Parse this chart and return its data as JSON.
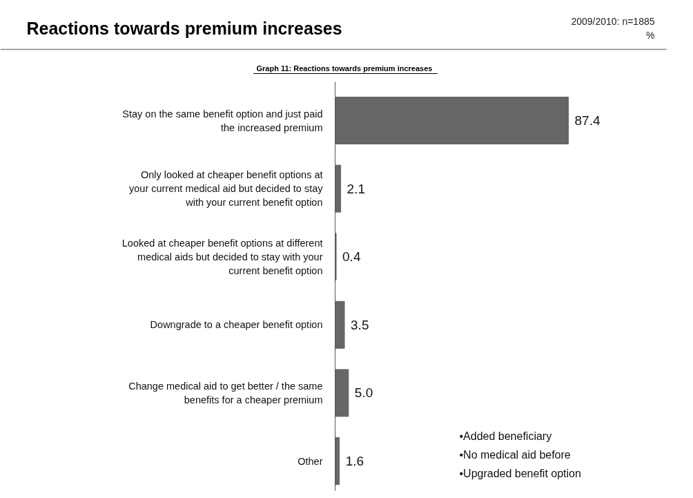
{
  "chart_data": {
    "type": "bar",
    "orientation": "horizontal",
    "title": "Reactions towards premium increases",
    "subtitle": "Graph 11:  Reactions towards premium increases",
    "categories": [
      "Stay on the same benefit option and just paid\nthe increased premium",
      "Only looked at cheaper benefit options at\nyour current medical aid but decided to stay\nwith your current benefit option",
      "Looked at cheaper benefit options at different\nmedical aids but decided to stay with your\ncurrent benefit option",
      "Downgrade to a cheaper benefit option",
      "Change medical aid to get better / the same\nbenefits for a cheaper premium",
      "Other"
    ],
    "values": [
      87.4,
      2.1,
      0.4,
      3.5,
      5.0,
      1.6
    ],
    "color": "#666666",
    "value_labels": [
      "87.4",
      "2.1",
      "0.4",
      "3.5",
      "5.0",
      "1.6"
    ],
    "annotations": [
      "2009/2010: n=1885\n%",
      "•Added beneficiary\n•No medical aid before\n•Upgraded benefit option"
    ]
  }
}
